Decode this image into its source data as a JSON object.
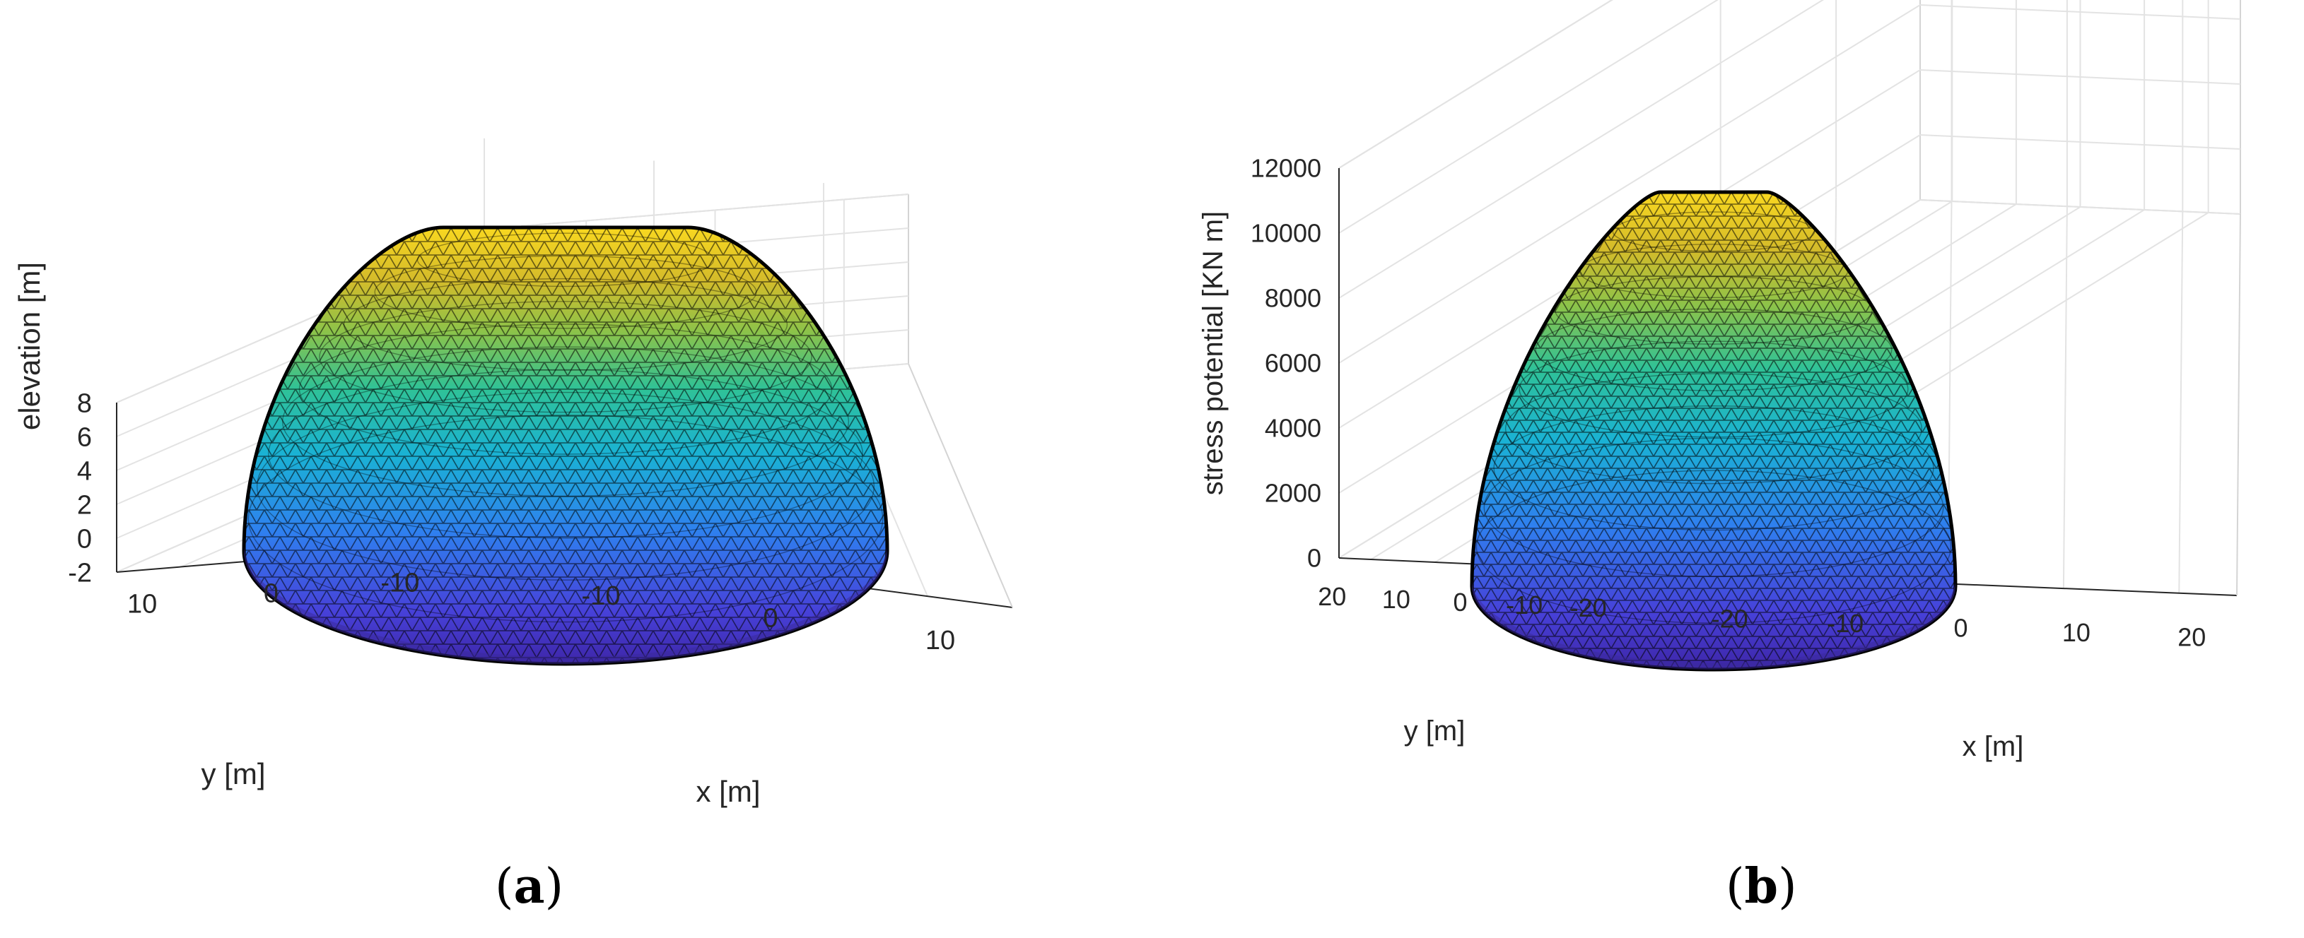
{
  "panels": [
    {
      "caption_open": "(",
      "caption_letter": "a",
      "caption_close": ")",
      "chart_data": {
        "type": "surface",
        "colormap": "parula",
        "mesh": "triangular",
        "x": [
          -13,
          13
        ],
        "y": [
          -13,
          13
        ],
        "zlabel": "elevation [m]",
        "xlabel": "x [m]",
        "ylabel": "y [m]",
        "zlim": [
          -2,
          8
        ],
        "xlim": [
          -15,
          15
        ],
        "ylim": [
          -15,
          15
        ],
        "z_ticks": [
          "-2",
          "0",
          "2",
          "4",
          "6",
          "8"
        ],
        "x_ticks": [
          "-10",
          "0",
          "10"
        ],
        "y_ticks": [
          "-10",
          "0",
          "10"
        ],
        "z_base": -2,
        "z_peak": 6.9,
        "grid": true
      }
    },
    {
      "caption_open": "(",
      "caption_letter": "b",
      "caption_close": ")",
      "chart_data": {
        "type": "surface",
        "colormap": "parula",
        "mesh": "triangular",
        "zlabel": "stress potential [KN m]",
        "xlabel": "x [m]",
        "ylabel": "y [m]",
        "zlim": [
          0,
          12000
        ],
        "xlim": [
          -20,
          20
        ],
        "ylim": [
          -20,
          20
        ],
        "z_ticks": [
          "0",
          "2000",
          "4000",
          "6000",
          "8000",
          "10000",
          "12000"
        ],
        "x_ticks": [
          "-20",
          "-10",
          "0",
          "10",
          "20"
        ],
        "y_ticks": [
          "-20",
          "-10",
          "0",
          "10",
          "20"
        ],
        "z_base": 0,
        "z_peak": 11300,
        "grid": true
      }
    }
  ]
}
